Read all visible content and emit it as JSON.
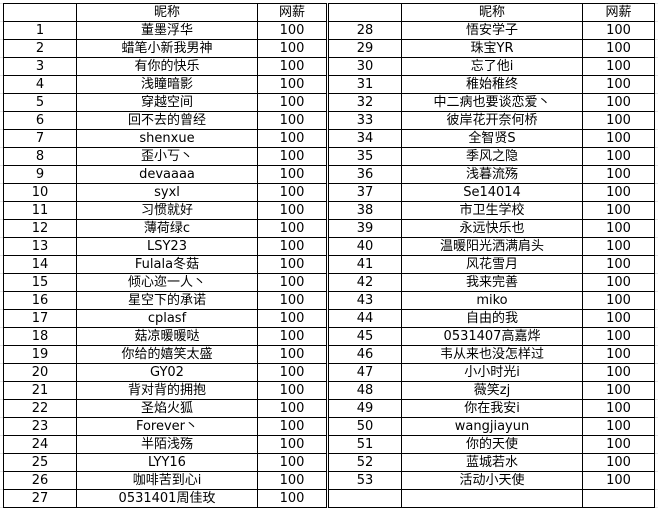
{
  "header": {
    "nickname": "昵称",
    "salary": "网薪"
  },
  "left_rows": [
    {
      "no": "1",
      "name": "董墨浮华",
      "salary": "100"
    },
    {
      "no": "2",
      "name": "蜡笔小新我男神",
      "salary": "100"
    },
    {
      "no": "3",
      "name": "有你的快乐",
      "salary": "100"
    },
    {
      "no": "4",
      "name": "浅瞳暗影",
      "salary": "100"
    },
    {
      "no": "5",
      "name": "穿越空间",
      "salary": "100"
    },
    {
      "no": "6",
      "name": "回不去的曾经",
      "salary": "100"
    },
    {
      "no": "7",
      "name": "shenxue",
      "salary": "100"
    },
    {
      "no": "8",
      "name": "歪小丂丶",
      "salary": "100"
    },
    {
      "no": "9",
      "name": "devaaaa",
      "salary": "100"
    },
    {
      "no": "10",
      "name": "syxl",
      "salary": "100"
    },
    {
      "no": "11",
      "name": "习惯就好",
      "salary": "100"
    },
    {
      "no": "12",
      "name": "薄荷绿c",
      "salary": "100"
    },
    {
      "no": "13",
      "name": "LSY23",
      "salary": "100"
    },
    {
      "no": "14",
      "name": "Fulala冬菇",
      "salary": "100"
    },
    {
      "no": "15",
      "name": "倾心迩一人丶",
      "salary": "100"
    },
    {
      "no": "16",
      "name": "星空下的承诺",
      "salary": "100"
    },
    {
      "no": "17",
      "name": "cplasf",
      "salary": "100"
    },
    {
      "no": "18",
      "name": "菇凉暖暖哒",
      "salary": "100"
    },
    {
      "no": "19",
      "name": "你给的嬉笑太盛",
      "salary": "100"
    },
    {
      "no": "20",
      "name": "GY02",
      "salary": "100"
    },
    {
      "no": "21",
      "name": "背对背的拥抱",
      "salary": "100"
    },
    {
      "no": "22",
      "name": "圣焰火狐",
      "salary": "100"
    },
    {
      "no": "23",
      "name": "Forever丶",
      "salary": "100"
    },
    {
      "no": "24",
      "name": "半陌浅殇",
      "salary": "100"
    },
    {
      "no": "25",
      "name": "LYY16",
      "salary": "100"
    },
    {
      "no": "26",
      "name": "咖啡苦到心i",
      "salary": "100"
    },
    {
      "no": "27",
      "name": "0531401周佳玫",
      "salary": "100"
    }
  ],
  "right_rows": [
    {
      "no": "28",
      "name": "悟安学子",
      "salary": "100"
    },
    {
      "no": "29",
      "name": "珠宝YR",
      "salary": "100"
    },
    {
      "no": "30",
      "name": "忘了他i",
      "salary": "100"
    },
    {
      "no": "31",
      "name": "稚始稚终",
      "salary": "100"
    },
    {
      "no": "32",
      "name": "中二病也要谈恋爱丶",
      "salary": "100"
    },
    {
      "no": "33",
      "name": "彼岸花开奈何桥",
      "salary": "100"
    },
    {
      "no": "34",
      "name": "全智贤S",
      "salary": "100"
    },
    {
      "no": "35",
      "name": "季风之隐",
      "salary": "100"
    },
    {
      "no": "36",
      "name": "浅暮流殇",
      "salary": "100"
    },
    {
      "no": "37",
      "name": "Se14014",
      "salary": "100"
    },
    {
      "no": "38",
      "name": "市卫生学校",
      "salary": "100"
    },
    {
      "no": "39",
      "name": "永远快乐也",
      "salary": "100"
    },
    {
      "no": "40",
      "name": "温暖阳光洒满肩头",
      "salary": "100"
    },
    {
      "no": "41",
      "name": "风花雪月",
      "salary": "100"
    },
    {
      "no": "42",
      "name": "我来完善",
      "salary": "100"
    },
    {
      "no": "43",
      "name": "miko",
      "salary": "100"
    },
    {
      "no": "44",
      "name": "自由的我",
      "salary": "100"
    },
    {
      "no": "45",
      "name": "0531407高嘉烨",
      "salary": "100"
    },
    {
      "no": "46",
      "name": "韦从来也没怎样过",
      "salary": "100"
    },
    {
      "no": "47",
      "name": "小小时光i",
      "salary": "100"
    },
    {
      "no": "48",
      "name": "薇笑zj",
      "salary": "100"
    },
    {
      "no": "49",
      "name": "你在我安i",
      "salary": "100"
    },
    {
      "no": "50",
      "name": "wangjiayun",
      "salary": "100"
    },
    {
      "no": "51",
      "name": "你的天使",
      "salary": "100"
    },
    {
      "no": "52",
      "name": "蓝城若水",
      "salary": "100"
    },
    {
      "no": "53",
      "name": "活动小天使",
      "salary": "100"
    }
  ]
}
